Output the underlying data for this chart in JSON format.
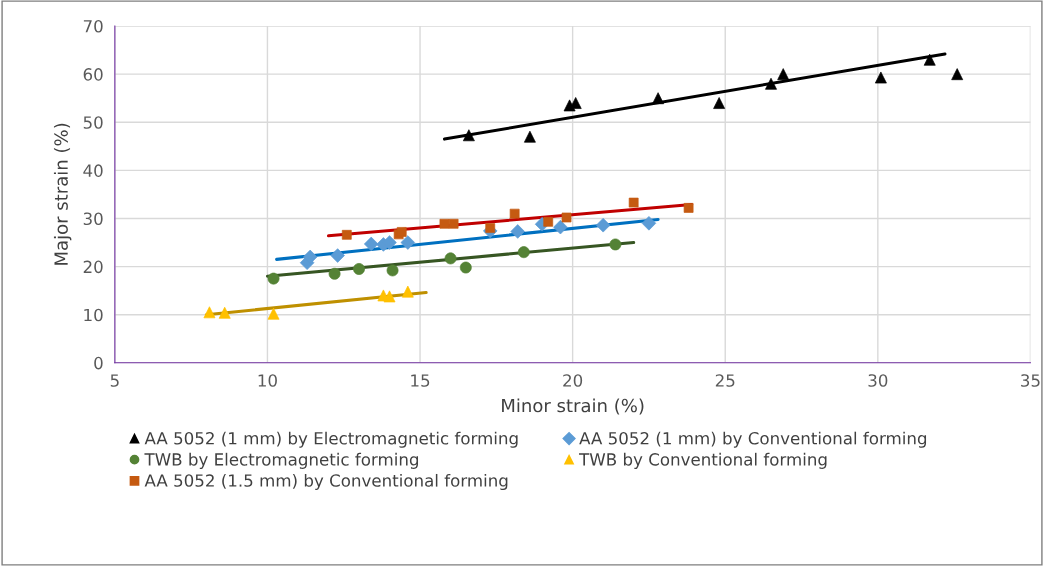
{
  "chart_data": {
    "type": "scatter",
    "xlabel": "Minor strain (%)",
    "ylabel": "Major strain (%)",
    "xlim": [
      5,
      35
    ],
    "xticks": [
      5,
      10,
      15,
      20,
      25,
      30,
      35
    ],
    "ylim": [
      0,
      70
    ],
    "yticks": [
      0,
      10,
      20,
      30,
      40,
      50,
      60,
      70
    ],
    "grid": true,
    "legend": "bottom",
    "series": [
      {
        "name": "AA 5052 (1 mm) by Electromagnetic forming",
        "color": "#000000",
        "marker": "triangle",
        "x": [
          16.6,
          18.6,
          19.9,
          20.1,
          22.8,
          24.8,
          26.5,
          26.9,
          30.1,
          31.7,
          32.6
        ],
        "values": [
          47.3,
          47,
          53.5,
          54,
          55,
          54,
          58,
          60,
          59.3,
          63,
          60
        ]
      },
      {
        "name": "AA 5052 (1 mm) by Conventional forming",
        "color": "#5b9bd5",
        "marker": "diamond",
        "x": [
          11.3,
          11.4,
          12.3,
          13.4,
          13.8,
          14.0,
          14.6,
          17.3,
          18.2,
          19.0,
          19.6,
          21.0,
          22.5
        ],
        "values": [
          20.8,
          22,
          22.3,
          24.7,
          24.6,
          25,
          25,
          27.4,
          27.3,
          28.8,
          28.2,
          28.6,
          29
        ]
      },
      {
        "name": "TWB by Electromagnetic forming",
        "color": "#548235",
        "marker": "circle",
        "x": [
          10.2,
          12.2,
          13.0,
          14.1,
          16.0,
          16.5,
          18.4,
          21.4
        ],
        "values": [
          17.5,
          18.5,
          19.5,
          19.2,
          21.7,
          19.8,
          23,
          24.6
        ]
      },
      {
        "name": "TWB by Conventional forming",
        "color": "#ffc000",
        "marker": "triangle",
        "x": [
          8.1,
          8.6,
          10.2,
          13.8,
          14.0,
          14.6
        ],
        "values": [
          10.5,
          10.4,
          10.2,
          14,
          13.8,
          14.8
        ]
      },
      {
        "name": "AA 5052 (1.5 mm) by Conventional forming",
        "color": "#c55a11",
        "marker": "square",
        "x": [
          12.6,
          14.3,
          14.4,
          15.8,
          16.1,
          17.3,
          18.1,
          19.2,
          19.8,
          22.0,
          23.8
        ],
        "values": [
          26.6,
          26.7,
          27.2,
          28.9,
          28.9,
          28,
          31,
          29.3,
          30.2,
          33.3,
          32.2
        ]
      },
      {
        "type": "line",
        "color": "#000000",
        "x": [
          15.8,
          32.2
        ],
        "values": [
          46.5,
          64.2
        ]
      },
      {
        "type": "line",
        "color": "#0070c0",
        "x": [
          10.3,
          22.8
        ],
        "values": [
          21.5,
          29.8
        ]
      },
      {
        "type": "line",
        "color": "#375623",
        "x": [
          10.0,
          22.0
        ],
        "values": [
          18,
          25
        ]
      },
      {
        "type": "line",
        "color": "#bf9000",
        "x": [
          8.0,
          15.2
        ],
        "values": [
          10,
          14.6
        ]
      },
      {
        "type": "line",
        "color": "#c00000",
        "x": [
          12.0,
          23.9
        ],
        "values": [
          26.4,
          32.9
        ]
      }
    ]
  }
}
